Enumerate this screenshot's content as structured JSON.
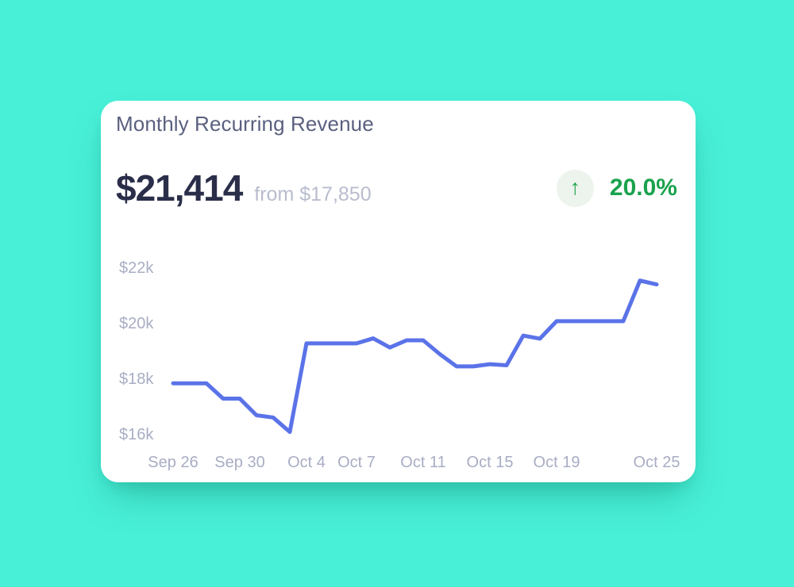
{
  "page": {
    "background_color": "#48f0d8"
  },
  "card": {
    "title": "Monthly Recurring Revenue",
    "current_value": "$21,414",
    "previous_value_label": "from $17,850",
    "change": {
      "percent": "20.0%",
      "direction": "up",
      "arrow_glyph": "↑"
    },
    "colors": {
      "card_background": "#ffffff",
      "title_text": "#5b6080",
      "value_text": "#2a2e49",
      "muted_text": "#b9bccd",
      "axis_text": "#a9adc4",
      "positive_green": "#1aa24d",
      "badge_background": "#edf3ed",
      "line": "#5b73e8"
    }
  },
  "chart_data": {
    "type": "line",
    "title": "Monthly Recurring Revenue daily trend",
    "xlabel": "",
    "ylabel": "",
    "grid": false,
    "legend": false,
    "line_color": "#5b73e8",
    "line_width": 5,
    "ylim": [
      16000,
      22000
    ],
    "x": [
      "Sep 26",
      "Sep 27",
      "Sep 28",
      "Sep 29",
      "Sep 30",
      "Oct 1",
      "Oct 2",
      "Oct 3",
      "Oct 4",
      "Oct 5",
      "Oct 6",
      "Oct 7",
      "Oct 8",
      "Oct 9",
      "Oct 10",
      "Oct 11",
      "Oct 12",
      "Oct 13",
      "Oct 14",
      "Oct 15",
      "Oct 16",
      "Oct 17",
      "Oct 18",
      "Oct 19",
      "Oct 20",
      "Oct 21",
      "Oct 22",
      "Oct 23",
      "Oct 24",
      "Oct 25"
    ],
    "values": [
      17850,
      17850,
      17850,
      17300,
      17300,
      16700,
      16620,
      16100,
      19290,
      19290,
      19290,
      19290,
      19470,
      19140,
      19400,
      19400,
      18900,
      18460,
      18460,
      18540,
      18500,
      19570,
      19460,
      20090,
      20090,
      20090,
      20090,
      20090,
      21550,
      21414
    ],
    "y_ticks": [
      {
        "label": "$16k",
        "value": 16000
      },
      {
        "label": "$18k",
        "value": 18000
      },
      {
        "label": "$20k",
        "value": 20000
      },
      {
        "label": "$22k",
        "value": 22000
      }
    ],
    "x_ticks": [
      {
        "label": "Sep 26",
        "index": 0
      },
      {
        "label": "Sep 30",
        "index": 4
      },
      {
        "label": "Oct 4",
        "index": 8
      },
      {
        "label": "Oct 7",
        "index": 11
      },
      {
        "label": "Oct 11",
        "index": 15
      },
      {
        "label": "Oct 15",
        "index": 19
      },
      {
        "label": "Oct 19",
        "index": 23
      },
      {
        "label": "Oct 25",
        "index": 29
      }
    ]
  }
}
